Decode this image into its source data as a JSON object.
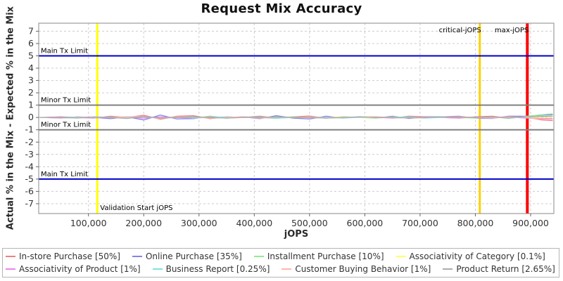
{
  "title": "Request Mix Accuracy",
  "chart_data": {
    "type": "line",
    "title": "Request Mix Accuracy",
    "xlabel": "jOPS",
    "ylabel": "Actual % in the Mix - Expected % in the Mix",
    "xlim": [
      10000,
      942000
    ],
    "ylim": [
      -7.8,
      7.65
    ],
    "grid": "dashed",
    "grid_color": "#cccccc",
    "legend_position": "bottom",
    "xticks": [
      100000,
      200000,
      300000,
      400000,
      500000,
      600000,
      700000,
      800000,
      900000
    ],
    "xtick_labels": [
      "100,000",
      "200,000",
      "300,000",
      "400,000",
      "500,000",
      "600,000",
      "700,000",
      "800,000",
      "900,000"
    ],
    "yticks": [
      -7,
      -6,
      -5,
      -4,
      -3,
      -2,
      -1,
      0,
      1,
      2,
      3,
      4,
      5,
      6,
      7
    ],
    "x": [
      12000,
      20000,
      50000,
      80000,
      110000,
      140000,
      170000,
      200000,
      230000,
      260000,
      290000,
      320000,
      350000,
      380000,
      410000,
      440000,
      470000,
      500000,
      530000,
      560000,
      590000,
      620000,
      650000,
      680000,
      710000,
      740000,
      770000,
      800000,
      830000,
      860000,
      890000,
      920000,
      940000
    ],
    "series": [
      {
        "label": "In-store Purchase [50%]",
        "color": "#F08080",
        "values": [
          0,
          0,
          0.05,
          0,
          -0.05,
          0.1,
          0,
          0.18,
          -0.15,
          0.1,
          0.15,
          -0.1,
          0.05,
          0,
          0.1,
          -0.05,
          0.05,
          0.12,
          -0.05,
          0.05,
          0,
          0.05,
          -0.05,
          0.1,
          0.05,
          0,
          -0.05,
          0.05,
          0.1,
          -0.05,
          0.05,
          -0.2,
          -0.25
        ]
      },
      {
        "label": "Online Purchase [35%]",
        "color": "#8484E8",
        "values": [
          0,
          0,
          -0.05,
          0.05,
          0,
          -0.1,
          0.05,
          -0.2,
          0.2,
          -0.12,
          -0.1,
          0.1,
          -0.05,
          0.05,
          -0.1,
          0.15,
          -0.05,
          -0.12,
          0.1,
          -0.05,
          0.05,
          -0.05,
          0.1,
          -0.08,
          0.05,
          0.05,
          0.1,
          -0.05,
          -0.08,
          0.1,
          0.1,
          0.18,
          0.22
        ]
      },
      {
        "label": "Installment Purchase [10%]",
        "color": "#90EE90",
        "values": [
          0,
          0,
          0,
          -0.05,
          0.05,
          0,
          -0.05,
          0.1,
          -0.1,
          0.05,
          -0.05,
          0.1,
          -0.05,
          0.05,
          0,
          -0.08,
          0.05,
          0,
          -0.05,
          0.05,
          0,
          -0.05,
          0.05,
          0,
          -0.05,
          0.05,
          0,
          -0.05,
          0.05,
          -0.08,
          0.08,
          0.22,
          0.3
        ]
      },
      {
        "label": "Associativity of Category [0.1%]",
        "color": "#FFFF66",
        "values": [
          0,
          0,
          0,
          0,
          0.02,
          0,
          -0.02,
          0.04,
          -0.04,
          0,
          0.02,
          0,
          -0.02,
          0,
          0.02,
          0,
          0,
          -0.02,
          0,
          0.02,
          0,
          0,
          -0.02,
          0.02,
          0,
          0,
          0.02,
          0,
          -0.02,
          0,
          0.02,
          -0.04,
          -0.04
        ]
      },
      {
        "label": "Associativity of Product [1%]",
        "color": "#EE82EE",
        "values": [
          0,
          0,
          0.04,
          0,
          -0.04,
          0,
          0.05,
          -0.06,
          0.05,
          0,
          -0.05,
          0.04,
          0,
          0.05,
          0,
          -0.04,
          0,
          0.05,
          0,
          -0.04,
          0.04,
          0,
          -0.04,
          0,
          0.04,
          0,
          -0.04,
          0.04,
          0,
          0.05,
          -0.05,
          -0.08,
          -0.1
        ]
      },
      {
        "label": "Business Report [0.25%]",
        "color": "#7CE3E3",
        "values": [
          0,
          0,
          0,
          0.04,
          0,
          0.04,
          -0.04,
          0.06,
          -0.05,
          0.04,
          -0.04,
          0,
          0.05,
          0,
          0.04,
          -0.04,
          0,
          0.04,
          0,
          -0.04,
          0,
          0.04,
          0,
          0.04,
          -0.04,
          0,
          0.04,
          0,
          0.04,
          -0.04,
          0.05,
          0.08,
          0.1
        ]
      },
      {
        "label": "Customer Buying Behavior [1%]",
        "color": "#FFB4AE",
        "values": [
          0,
          0,
          -0.04,
          0,
          0.04,
          0,
          0.05,
          0.1,
          -0.1,
          0.05,
          0.05,
          -0.05,
          0,
          0.05,
          -0.05,
          0.04,
          0,
          0.05,
          -0.04,
          0,
          0.04,
          0.05,
          0,
          -0.04,
          0,
          0.04,
          0.05,
          0,
          -0.05,
          0.04,
          0,
          -0.12,
          -0.15
        ]
      },
      {
        "label": "Product Return [2.65%]",
        "color": "#ABABAB",
        "values": [
          0,
          0,
          0,
          -0.04,
          0.04,
          0,
          -0.08,
          0.08,
          -0.05,
          0,
          0.05,
          0,
          -0.05,
          0,
          0,
          0.05,
          0,
          0,
          -0.05,
          0,
          0.05,
          0,
          0,
          -0.04,
          0,
          0.04,
          0,
          0,
          0.05,
          -0.04,
          0.04,
          0.08,
          0.1
        ]
      }
    ],
    "limit_lines": [
      {
        "label": "Main Tx Limit",
        "y": 5,
        "color": "#0000CD",
        "width": 2
      },
      {
        "label": "Minor Tx Limit",
        "y": 1,
        "color": "#808080",
        "width": 2
      },
      {
        "label": "Minor Tx Limit",
        "y": -1,
        "color": "#808080",
        "width": 2
      },
      {
        "label": "Main Tx Limit",
        "y": -5,
        "color": "#0000CD",
        "width": 2
      }
    ],
    "vlines": [
      {
        "label": "Validation Start jOPS",
        "x": 116000,
        "color": "#FFFF00",
        "width": 3,
        "label_anchor": "start",
        "label_pos": "bottom"
      },
      {
        "label": "critical-jOPS",
        "x": 808000,
        "color": "#FFD000",
        "width": 3,
        "label_anchor": "end",
        "label_pos": "top"
      },
      {
        "label": "max-jOPS",
        "x": 894000,
        "color": "#FF0000",
        "width": 4,
        "label_anchor": "end",
        "label_pos": "top"
      }
    ]
  }
}
